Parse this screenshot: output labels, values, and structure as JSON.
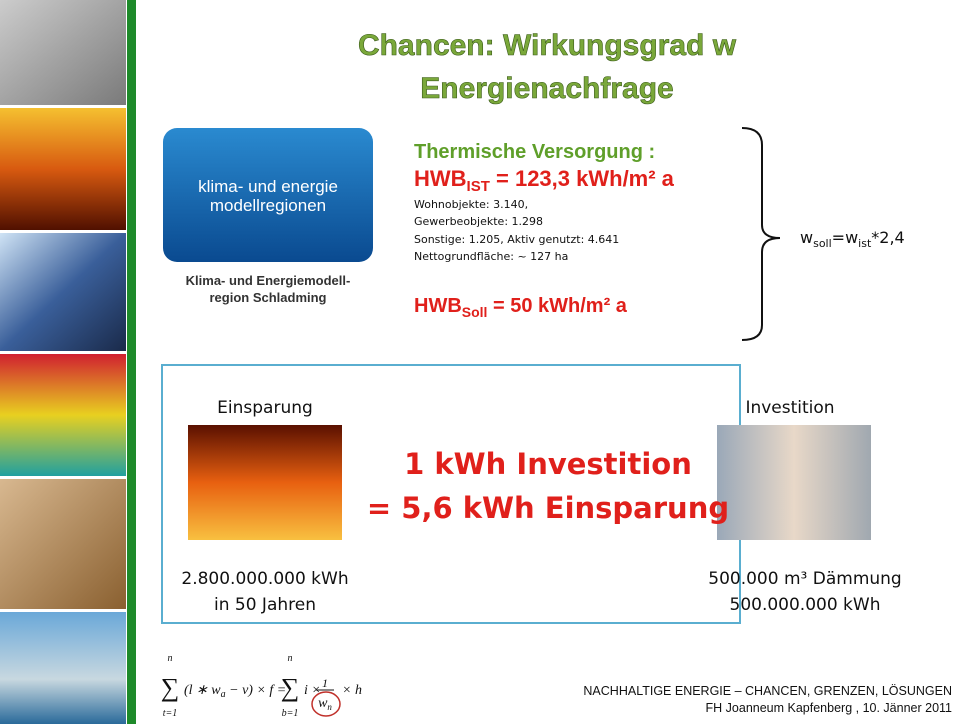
{
  "title": {
    "line1": "Chancen: Wirkungsgrad w",
    "line2": "Energienachfrage"
  },
  "logo": {
    "line1": "klima- und energie",
    "line2": "modellregionen",
    "caption1": "Klima- und Energiemodell-",
    "caption2": "region Schladming"
  },
  "thermal": {
    "heading": "Thermische Versorgung :",
    "hwb_ist": {
      "base": "HWB",
      "sub": "IST",
      "rest": " = 123,3 kWh/m² a"
    },
    "details": [
      "Wohnobjekte: 3.140,",
      "Gewerbeobjekte: 1.298",
      "Sonstige: 1.205, Aktiv genutzt: 4.641",
      "Nettogrundfläche: ~ 127  ha"
    ],
    "hwb_soll": {
      "base": "HWB",
      "sub": "Soll",
      "rest": " = 50 kWh/m² a"
    }
  },
  "factor": {
    "w1": "w",
    "sub1": "soll",
    "mid": "=w",
    "sub2": "ist",
    "rest": "*2,4"
  },
  "box": {
    "left_label": "Einsparung",
    "left_line1": "2.800.000.000 kWh",
    "left_line2": "in 50 Jahren",
    "center_line1": "1 kWh Investition",
    "center_line2": "= 5,6 kWh Einsparung",
    "right_label": "Investition",
    "right_line1": "500.000 m³ Dämmung",
    "right_line2": "500.000.000 kWh"
  },
  "formula": {
    "sigma": "∑",
    "sum1_top": "n",
    "sum1_bottom": "t=1",
    "term1": "(l ∗ w",
    "term1_sub": "a",
    "term2": " − v) × f =",
    "sum2_top": "n",
    "sum2_bottom": "b=1",
    "term3": "i ×",
    "frac_num": "1",
    "frac_den": "w",
    "frac_den_sub": "n",
    "term4": "× h"
  },
  "footer": {
    "line1": "NACHHALTIGE ENERGIE – CHANCEN, GRENZEN, LÖSUNGEN",
    "line2": "FH Joanneum Kapfenberg , 10. Jänner 2011"
  }
}
